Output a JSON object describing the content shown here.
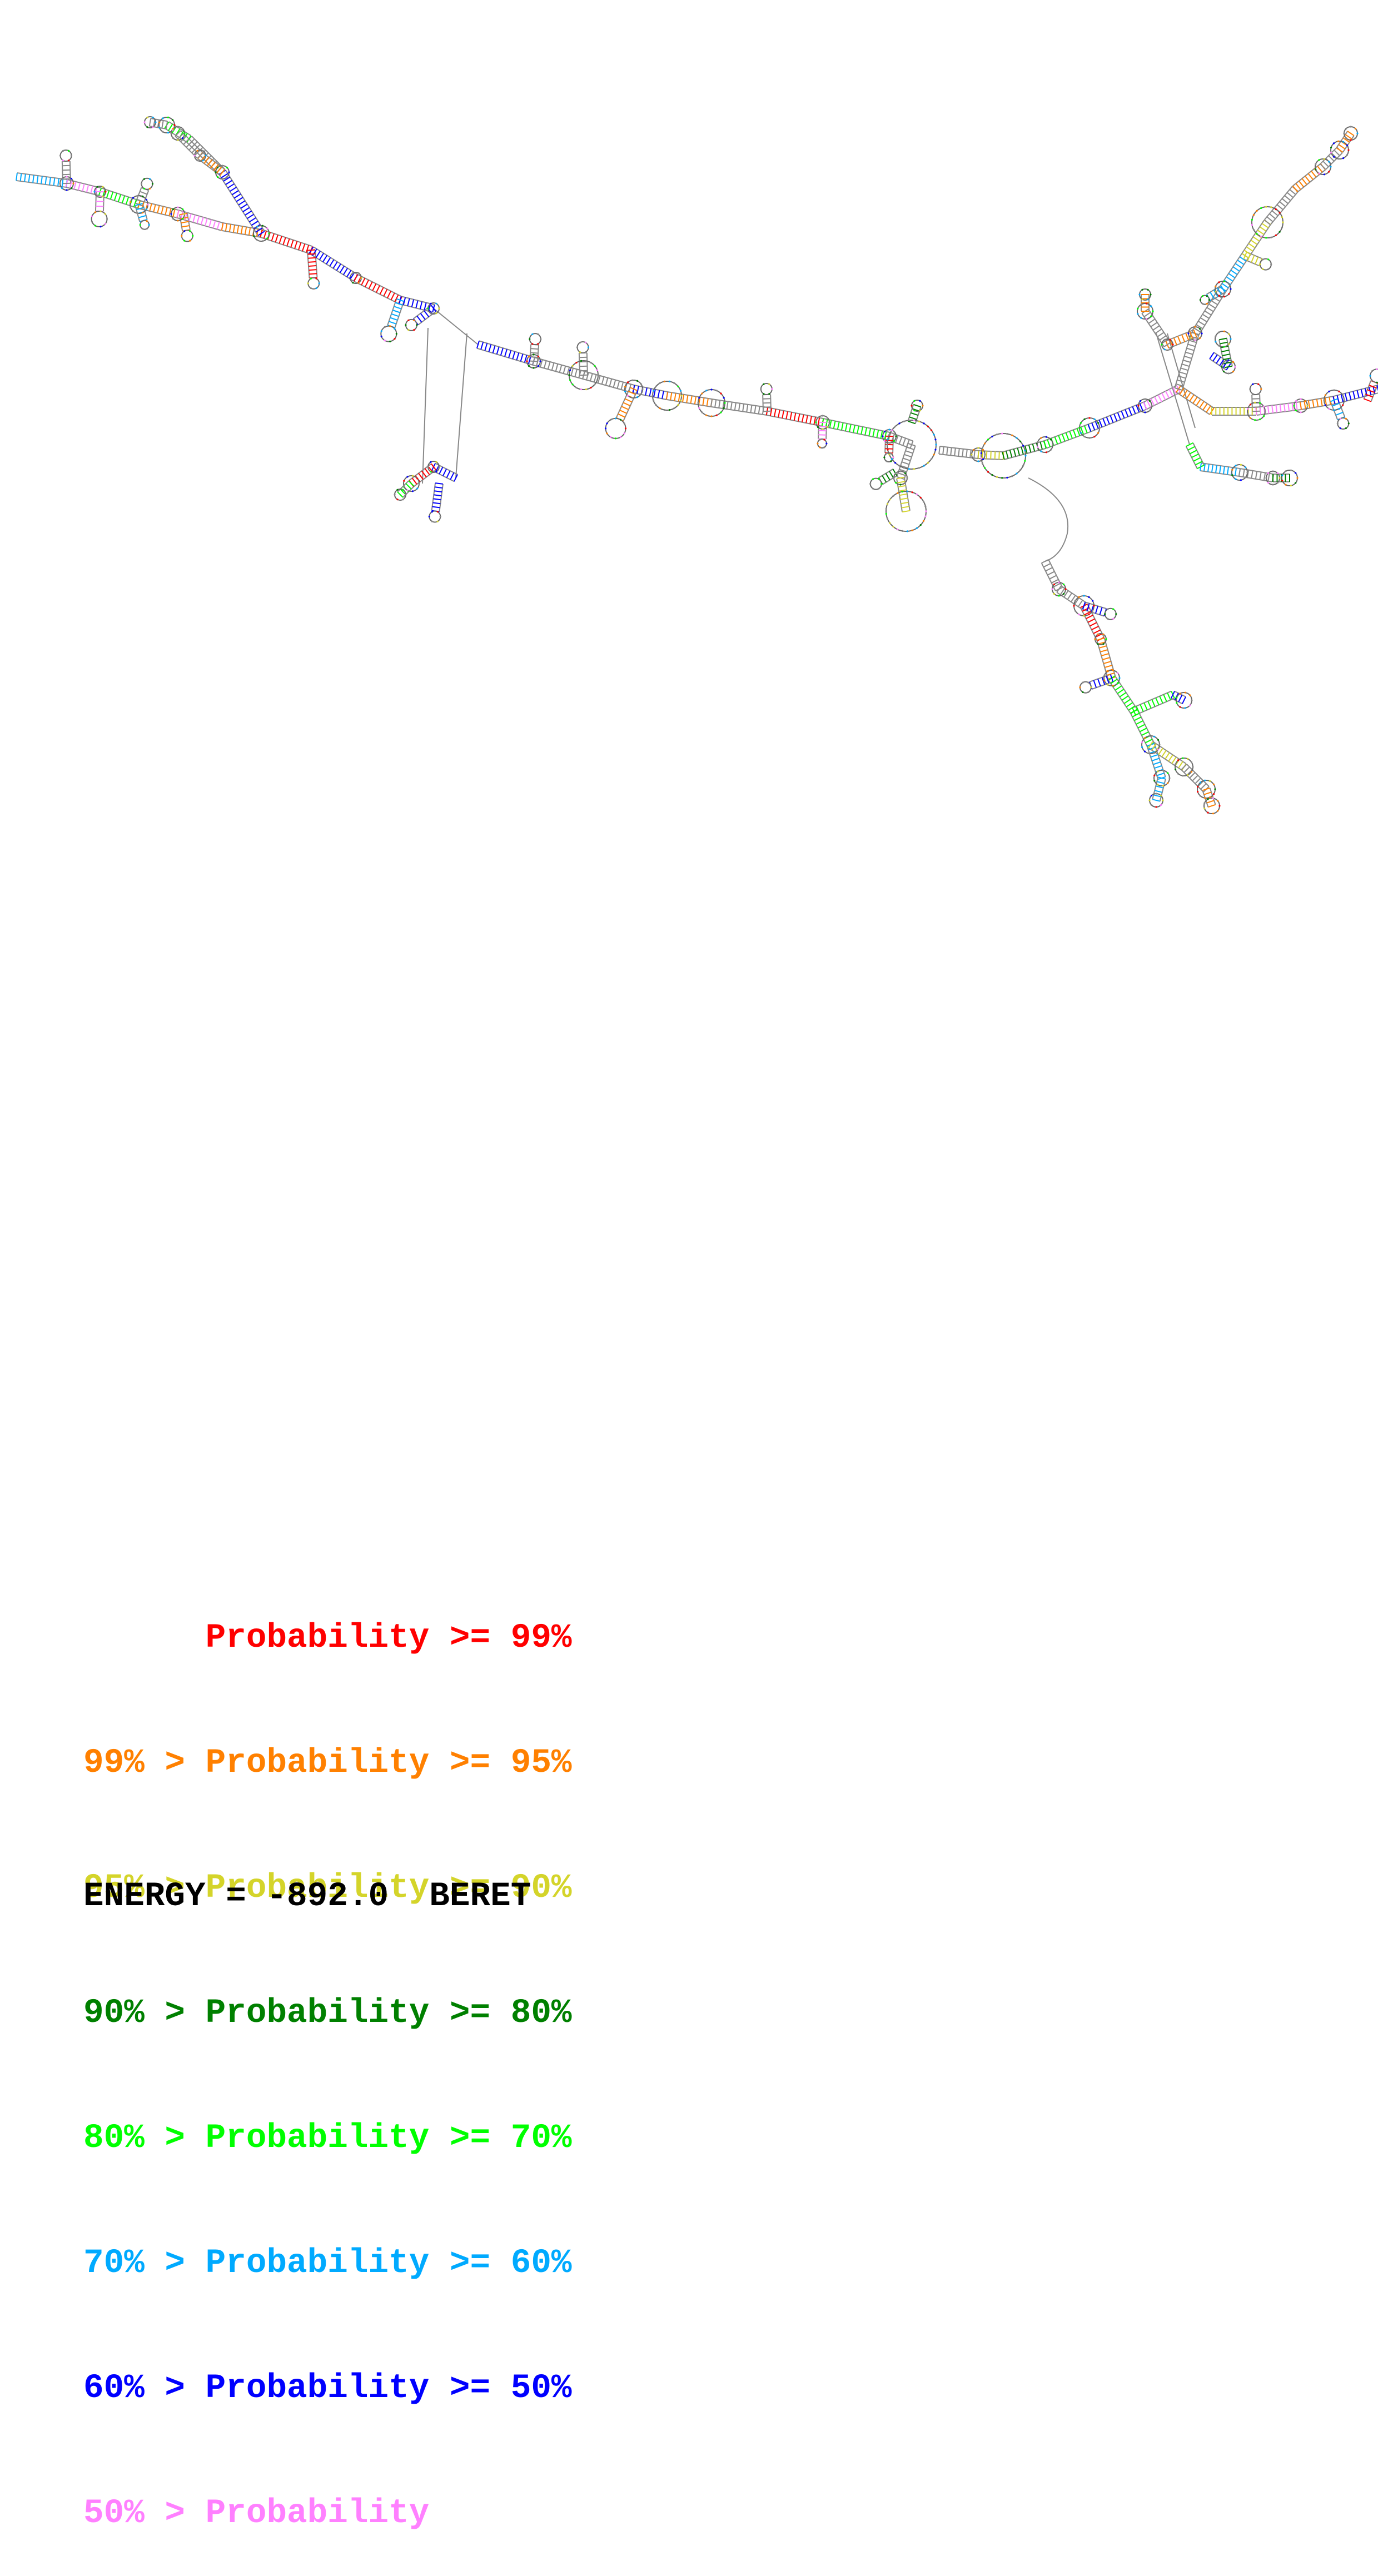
{
  "legend": [
    {
      "text": "      Probability >= 99%",
      "color": "#ff0000"
    },
    {
      "text": "99% > Probability >= 95%",
      "color": "#ff8000"
    },
    {
      "text": "95% > Probability >= 90%",
      "color": "#d4d42a"
    },
    {
      "text": "90% > Probability >= 80%",
      "color": "#008000"
    },
    {
      "text": "80% > Probability >= 70%",
      "color": "#00ff00"
    },
    {
      "text": "70% > Probability >= 60%",
      "color": "#00aaff"
    },
    {
      "text": "60% > Probability >= 50%",
      "color": "#0000ff"
    },
    {
      "text": "50% > Probability",
      "color": "#ff80ff"
    }
  ],
  "energy_label": "ENERGY = -892.0  BERET"
}
